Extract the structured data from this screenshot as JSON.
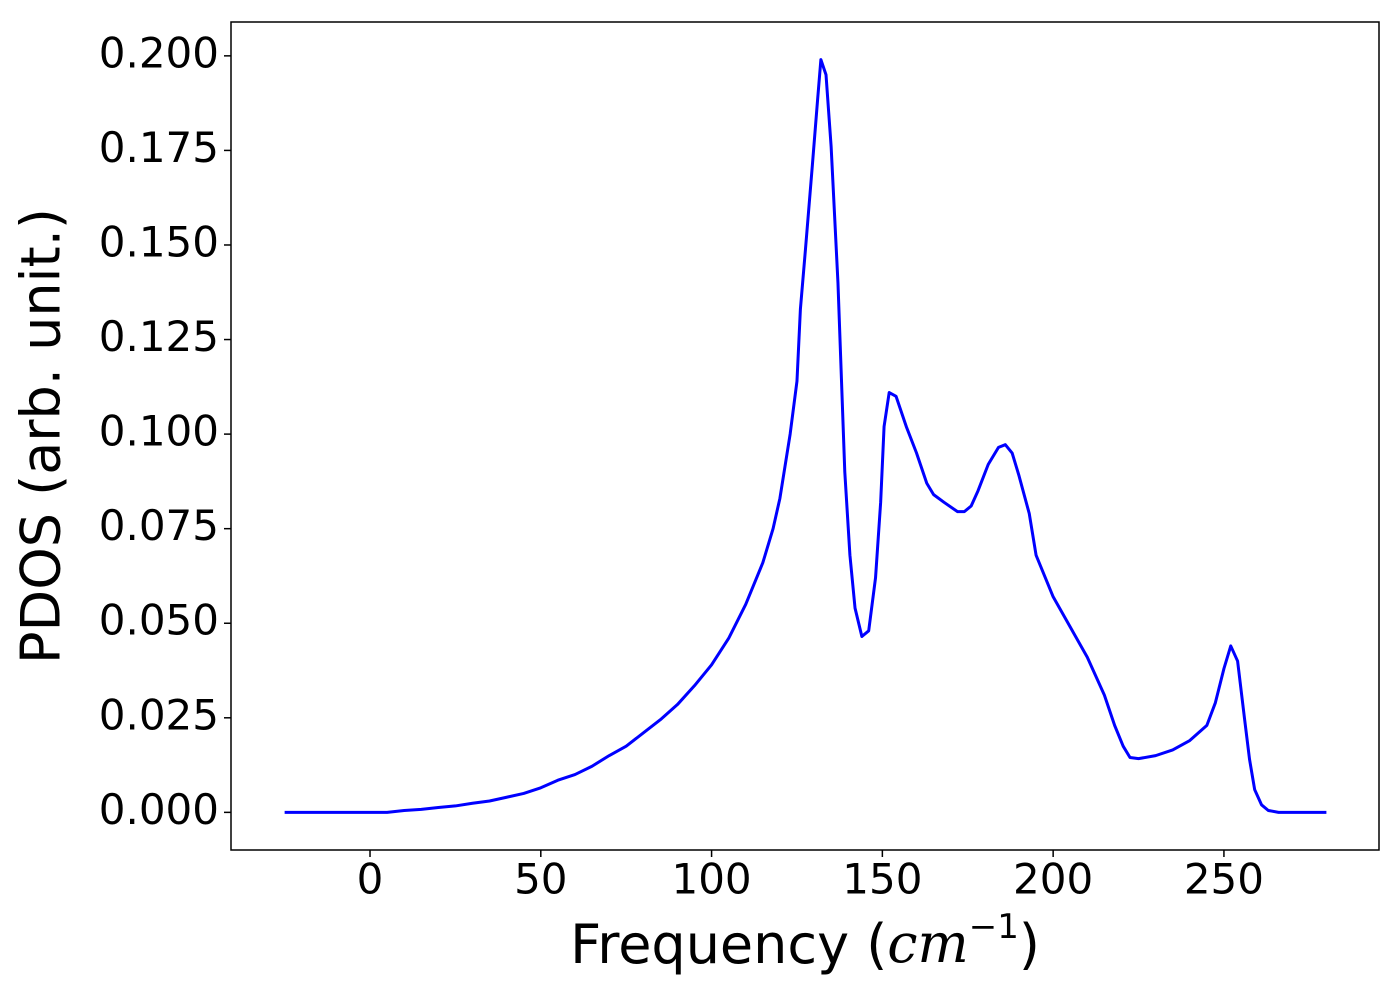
{
  "chart_data": {
    "type": "line",
    "xlabel": {
      "text": "Frequency (",
      "math": "cm",
      "superscript": "−1",
      "close": ")"
    },
    "ylabel": "PDOS (arb. unit.)",
    "x": [
      -25,
      0,
      5,
      10,
      15,
      20,
      25,
      30,
      35,
      40,
      45,
      50,
      55,
      60,
      65,
      70,
      75,
      80,
      85,
      90,
      95,
      100,
      105,
      110,
      115,
      118,
      120,
      123,
      125,
      126,
      127.5,
      129.5,
      131,
      132,
      133.5,
      135,
      137,
      139,
      140.5,
      142,
      144,
      146,
      148,
      149.5,
      150.5,
      152,
      154,
      157,
      160,
      163,
      165,
      168,
      172,
      174,
      176,
      178,
      181,
      184,
      186,
      188,
      190,
      193,
      195,
      200,
      205,
      210,
      215,
      218,
      220.5,
      222.5,
      225,
      230,
      235,
      240,
      245,
      247.5,
      250,
      252,
      254,
      256,
      257.5,
      259,
      261,
      263,
      266,
      280
    ],
    "series": [
      {
        "name": "PDOS",
        "color": "#0000ff",
        "values": [
          0,
          0,
          0,
          0.0005,
          0.0008,
          0.0013,
          0.0017,
          0.0024,
          0.003,
          0.004,
          0.005,
          0.0065,
          0.0085,
          0.01,
          0.0122,
          0.015,
          0.0175,
          0.021,
          0.0245,
          0.0285,
          0.0335,
          0.039,
          0.046,
          0.055,
          0.066,
          0.075,
          0.083,
          0.1,
          0.114,
          0.133,
          0.149,
          0.171,
          0.188,
          0.199,
          0.195,
          0.176,
          0.14,
          0.09,
          0.068,
          0.054,
          0.0465,
          0.048,
          0.062,
          0.082,
          0.102,
          0.111,
          0.11,
          0.102,
          0.095,
          0.087,
          0.084,
          0.082,
          0.0795,
          0.0795,
          0.081,
          0.085,
          0.092,
          0.0965,
          0.0972,
          0.095,
          0.089,
          0.079,
          0.068,
          0.057,
          0.049,
          0.041,
          0.031,
          0.023,
          0.0175,
          0.0145,
          0.0142,
          0.015,
          0.0165,
          0.019,
          0.023,
          0.029,
          0.038,
          0.044,
          0.04,
          0.025,
          0.014,
          0.006,
          0.002,
          0.0005,
          0,
          0
        ]
      }
    ],
    "xlim": [
      -40.7,
      295.4
    ],
    "xticks": [
      0,
      50,
      100,
      150,
      200,
      250
    ],
    "ylim": [
      -0.00995,
      0.20895
    ],
    "yticks": [
      {
        "value": 0,
        "label": "0.000"
      },
      {
        "value": 0.025,
        "label": "0.025"
      },
      {
        "value": 0.05,
        "label": "0.050"
      },
      {
        "value": 0.075,
        "label": "0.075"
      },
      {
        "value": 0.1,
        "label": "0.100"
      },
      {
        "value": 0.125,
        "label": "0.125"
      },
      {
        "value": 0.15,
        "label": "0.150"
      },
      {
        "value": 0.175,
        "label": "0.175"
      },
      {
        "value": 0.2,
        "label": "0.200"
      }
    ],
    "grid": false
  }
}
